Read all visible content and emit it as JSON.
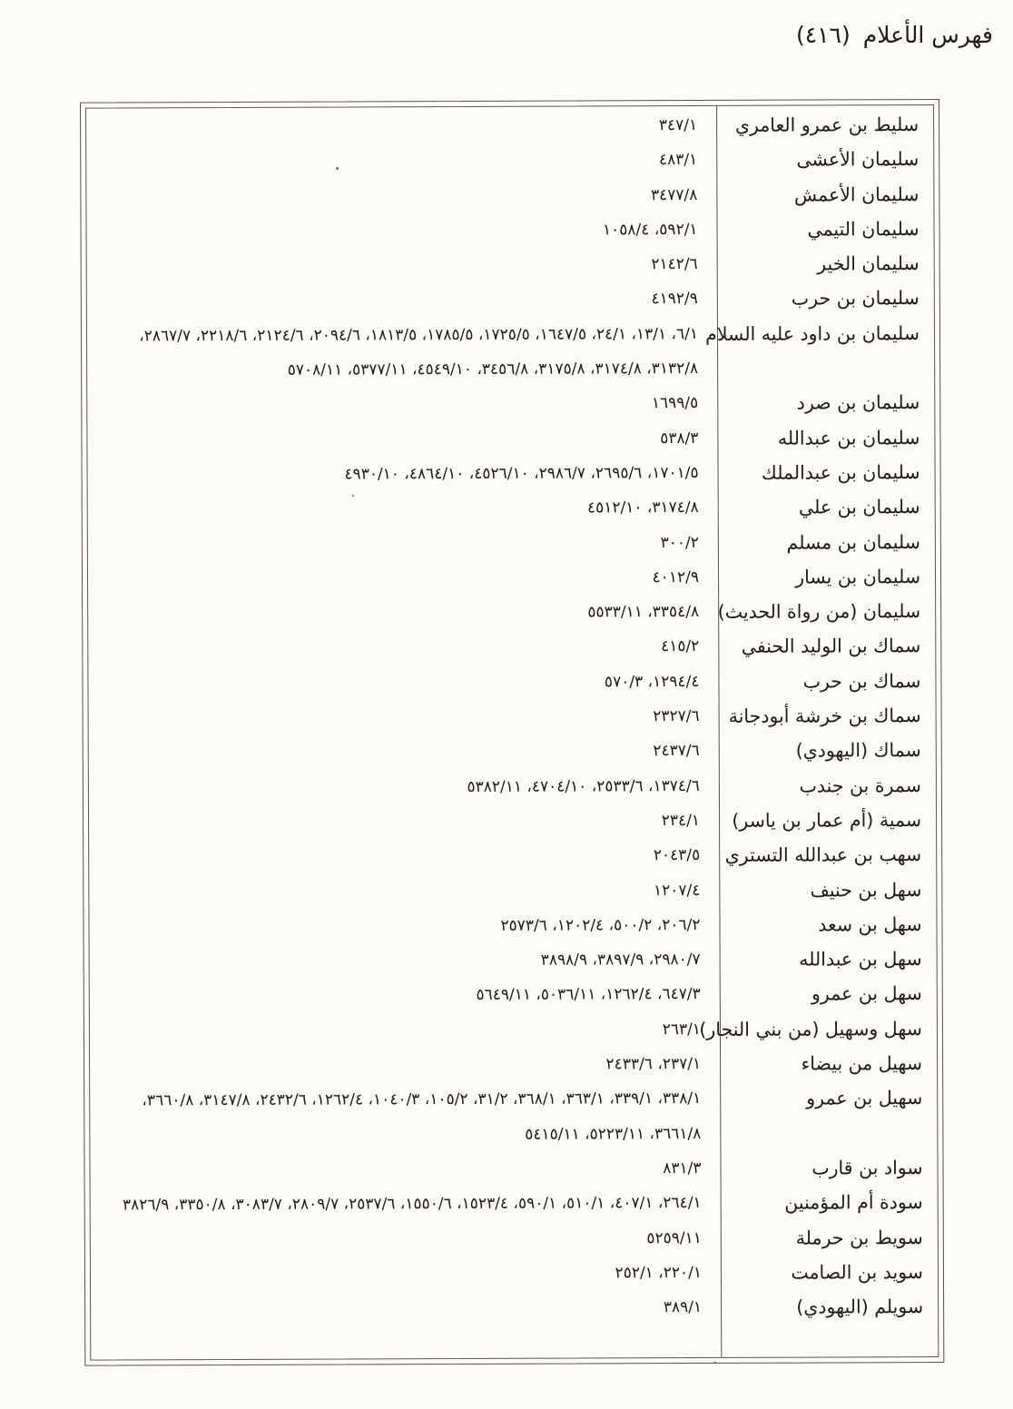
{
  "page": {
    "background_color": "#fcfbf7",
    "text_color": "#201d18",
    "border_color": "#56524a"
  },
  "header": {
    "title": "فهرس الأعلام",
    "page_number": "(٤١٦)"
  },
  "index": {
    "entries": [
      {
        "name": "سليط بن عمرو العامري",
        "refs": [
          "٣٤٧/١"
        ]
      },
      {
        "name": "سليمان الأعشى",
        "refs": [
          "٤٨٣/١"
        ]
      },
      {
        "name": "سليمان الأعمش",
        "refs": [
          "٣٤٧٧/٨"
        ]
      },
      {
        "name": "سليمان التيمي",
        "refs": [
          "٥٩٢/١، ١٠٥٨/٤"
        ]
      },
      {
        "name": "سليمان الخير",
        "refs": [
          "٢١٤٢/٦"
        ]
      },
      {
        "name": "سليمان بن حرب",
        "refs": [
          "٤١٩٢/٩"
        ]
      },
      {
        "name": "سليمان بن داود عليه السلام",
        "refs": [
          "٦/١، ١٣/١، ٢٤/١، ١٦٤٧/٥، ١٧٢٥/٥، ١٧٨٥/٥، ١٨١٣/٥، ٢٠٩٤/٦، ٢١٢٤/٦، ٢٢١٨/٦، ٢٨٦٧/٧،",
          "٣١٣٢/٨، ٣١٧٤/٨، ٣١٧٥/٨، ٣٤٥٦/٨، ٤٥٤٩/١٠، ٥٣٧٧/١١، ٥٧٠٨/١١"
        ]
      },
      {
        "name": "سليمان بن صرد",
        "refs": [
          "١٦٩٩/٥"
        ]
      },
      {
        "name": "سليمان بن عبدالله",
        "refs": [
          "٥٣٨/٣"
        ]
      },
      {
        "name": "سليمان بن عبدالملك",
        "refs": [
          "١٧٠١/٥، ٢٦٩٥/٦، ٢٩٨٦/٧، ٤٥٢٦/١٠، ٤٨٦٤/١٠، ٤٩٣٠/١٠"
        ]
      },
      {
        "name": "سليمان بن علي",
        "refs": [
          "٣١٧٤/٨، ٤٥١٢/١٠"
        ]
      },
      {
        "name": "سليمان بن مسلم",
        "refs": [
          "٣٠٠/٢"
        ]
      },
      {
        "name": "سليمان بن يسار",
        "refs": [
          "٤٠١٢/٩"
        ]
      },
      {
        "name": "سليمان (من رواة الحديث)",
        "refs": [
          "٣٣٥٤/٨، ٥٥٣٣/١١"
        ]
      },
      {
        "name": "سماك بن الوليد الحنفي",
        "refs": [
          "٤١٥/٢"
        ]
      },
      {
        "name": "سماك بن حرب",
        "refs": [
          "١٢٩٤/٤، ٥٧٠/٣"
        ]
      },
      {
        "name": "سماك بن خرشة أبودجانة",
        "refs": [
          "٢٣٢٧/٦"
        ]
      },
      {
        "name": "سماك (اليهودي)",
        "refs": [
          "٢٤٣٧/٦"
        ]
      },
      {
        "name": "سمرة بن جندب",
        "refs": [
          "١٣٧٤/٦، ٢٥٣٣/٦، ٤٧٠٤/١٠، ٥٣٨٢/١١"
        ]
      },
      {
        "name": "سمية (أم عمار بن ياسر)",
        "refs": [
          "٢٣٤/١"
        ]
      },
      {
        "name": "سهب بن عبدالله التستري",
        "refs": [
          "٢٠٤٣/٥"
        ]
      },
      {
        "name": "سهل بن حنيف",
        "refs": [
          "١٢٠٧/٤"
        ]
      },
      {
        "name": "سهل بن سعد",
        "refs": [
          "٢٠٦/٢، ٥٠٠/٢، ١٢٠٢/٤، ٢٥٧٣/٦"
        ]
      },
      {
        "name": "سهل بن عبدالله",
        "refs": [
          "٢٩٨٠/٧، ٣٨٩٧/٩، ٣٨٩٨/٩"
        ]
      },
      {
        "name": "سهل بن عمرو",
        "refs": [
          "٦٤٧/٣، ١٢٦٢/٤، ٥٠٣٦/١١، ٥٦٤٩/١١"
        ]
      },
      {
        "name": "سهل وسهيل (من بني النجار)",
        "refs": [
          "٢٦٣/١"
        ]
      },
      {
        "name": "سهيل من بيضاء",
        "refs": [
          "٢٣٧/١، ٢٤٣٣/٦"
        ]
      },
      {
        "name": "سهيل بن عمرو",
        "refs": [
          "٣٣٨/١، ٣٣٩/١، ٣٦٣/١، ٣٦٨/١، ٣١/٢، ١٠٥/٢، ١٠٤٠/٣، ١٢٦٢/٤، ٢٤٣٢/٦، ٣١٤٧/٨، ٣٦٦٠/٨،",
          "٣٦٦١/٨، ٥٢٢٣/١١، ٥٤١٥/١١"
        ]
      },
      {
        "name": "سواد بن قارب",
        "refs": [
          "٨٣١/٣"
        ]
      },
      {
        "name": "سودة أم المؤمنين",
        "refs": [
          "٢٦٤/١، ٤٠٧/١، ٥١٠/١، ٥٩٠/١، ١٥٢٣/٤، ١٥٥٠/٦، ٢٥٣٧/٦، ٢٨٠٩/٧، ٣٠٨٣/٧، ٣٣٥٠/٨، ٣٨٢٦/٩"
        ]
      },
      {
        "name": "سويط بن حرملة",
        "refs": [
          "٥٢٥٩/١١"
        ]
      },
      {
        "name": "سويد بن الصامت",
        "refs": [
          "٢٢٠/١، ٢٥٢/١"
        ]
      },
      {
        "name": "سويلم (اليهودي)",
        "refs": [
          "٣٨٩/١"
        ]
      }
    ]
  }
}
